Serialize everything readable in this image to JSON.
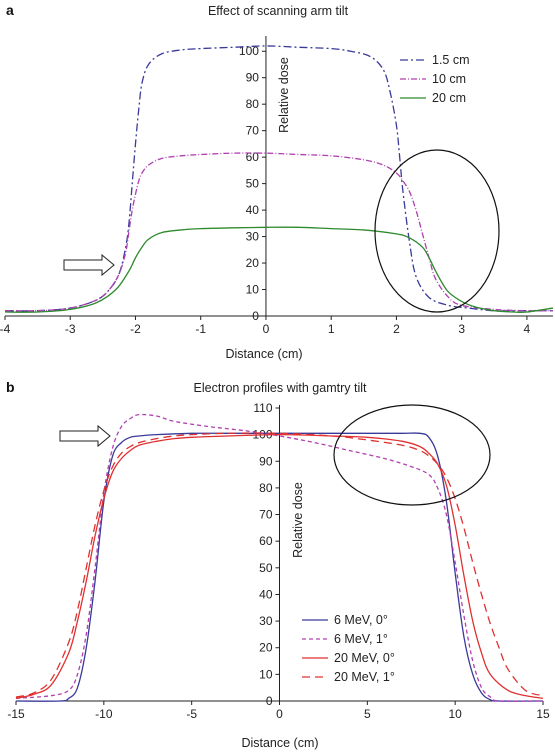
{
  "chart_data": [
    {
      "panel": "a",
      "type": "line",
      "title": "Effect of scanning arm tilt",
      "xlabel": "Distance (cm)",
      "ylabel": "Relative dose",
      "xlim": [
        -4,
        4.4
      ],
      "ylim": [
        0,
        105
      ],
      "xticks": [
        -4,
        -3,
        -2,
        -1,
        0,
        1,
        2,
        3,
        4
      ],
      "yticks": [
        0,
        10,
        20,
        30,
        40,
        50,
        60,
        70,
        80,
        90,
        100
      ],
      "legend_position": "top-right",
      "series": [
        {
          "name": "1.5 cm",
          "color": "#3a3a9a",
          "dash": "8,3,2,3",
          "x": [
            -4.0,
            -3.5,
            -3.0,
            -2.6,
            -2.4,
            -2.25,
            -2.15,
            -2.1,
            -2.05,
            -2.0,
            -1.95,
            -1.9,
            -1.8,
            -1.6,
            -1.3,
            -1.0,
            -0.5,
            0.0,
            0.5,
            1.0,
            1.3,
            1.6,
            1.8,
            1.9,
            2.0,
            2.05,
            2.1,
            2.2,
            2.3,
            2.5,
            2.8,
            3.1,
            3.5,
            4.0,
            4.4
          ],
          "y": [
            2,
            2,
            3,
            6,
            10,
            16,
            26,
            35,
            50,
            65,
            78,
            88,
            95,
            99,
            100.5,
            101,
            101.5,
            102,
            101.5,
            101,
            100,
            98,
            93,
            85,
            72,
            60,
            47,
            28,
            15,
            7,
            4,
            3,
            2,
            2,
            2
          ]
        },
        {
          "name": "10 cm",
          "color": "#b040b0",
          "dash": "6,2,1,2",
          "x": [
            -4.0,
            -3.5,
            -3.0,
            -2.6,
            -2.4,
            -2.25,
            -2.15,
            -2.1,
            -2.05,
            -2.0,
            -1.95,
            -1.9,
            -1.8,
            -1.6,
            -1.3,
            -1.0,
            -0.5,
            0.0,
            0.5,
            1.0,
            1.5,
            1.8,
            2.0,
            2.1,
            2.2,
            2.3,
            2.4,
            2.5,
            2.6,
            2.8,
            3.0,
            3.5,
            4.0,
            4.4
          ],
          "y": [
            2,
            2,
            3,
            6,
            10,
            16,
            24,
            32,
            40,
            46,
            51,
            54,
            57,
            59.5,
            60.5,
            61,
            61.5,
            61.5,
            61,
            60.5,
            59,
            57,
            54,
            51,
            47,
            40,
            31,
            22,
            14,
            7,
            4,
            2.5,
            2,
            2
          ]
        },
        {
          "name": "20 cm",
          "color": "#2d8a2d",
          "dash": "",
          "x": [
            -4.0,
            -3.5,
            -3.0,
            -2.6,
            -2.3,
            -2.1,
            -2.0,
            -1.9,
            -1.8,
            -1.6,
            -1.3,
            -1.0,
            -0.5,
            0.0,
            0.5,
            1.0,
            1.5,
            2.0,
            2.2,
            2.4,
            2.5,
            2.6,
            2.7,
            2.8,
            3.0,
            3.2,
            3.5,
            3.8,
            4.0,
            4.4
          ],
          "y": [
            1.5,
            1.5,
            2.5,
            5,
            10,
            17,
            22,
            26,
            29,
            31.5,
            32.5,
            33,
            33.3,
            33.5,
            33.5,
            33,
            32.5,
            31,
            29.5,
            26,
            22,
            17,
            12.5,
            9,
            5.5,
            3.5,
            2,
            1.5,
            1.5,
            3
          ]
        }
      ],
      "annotations": [
        "arrow",
        "ellipse"
      ]
    },
    {
      "panel": "b",
      "type": "line",
      "title": "Electron profiles with gamtry tilt",
      "xlabel": "Distance (cm)",
      "ylabel": "Relative dose",
      "xlim": [
        -15,
        15
      ],
      "ylim": [
        0,
        110
      ],
      "xticks": [
        -15,
        -10,
        -5,
        0,
        5,
        10,
        15
      ],
      "yticks": [
        0,
        10,
        20,
        30,
        40,
        50,
        60,
        70,
        80,
        90,
        100,
        110
      ],
      "legend_position": "bottom-right",
      "series": [
        {
          "name": "6 MeV, 0°",
          "color": "#3a3a9a",
          "dash": "",
          "x": [
            -15,
            -12.5,
            -12.0,
            -11.5,
            -11.0,
            -10.5,
            -10.0,
            -9.5,
            -9.0,
            -8.5,
            -8.0,
            -7.0,
            -5.0,
            -3.0,
            0.0,
            3.0,
            5.0,
            7.0,
            8.0,
            8.5,
            9.0,
            9.5,
            10.0,
            10.5,
            11.0,
            11.5,
            12.0,
            12.5,
            15
          ],
          "y": [
            0,
            0,
            1,
            5,
            20,
            45,
            75,
            92,
            97,
            99,
            99.5,
            100,
            100.5,
            100.5,
            100.5,
            100.5,
            100.5,
            100.5,
            100.5,
            99,
            92,
            75,
            48,
            24,
            10,
            3,
            0.5,
            0,
            0
          ]
        },
        {
          "name": "6 MeV, 1°",
          "color": "#b040b0",
          "dash": "4,3",
          "x": [
            -15,
            -13.0,
            -12.0,
            -11.5,
            -11.0,
            -10.5,
            -10.0,
            -9.5,
            -9.0,
            -8.5,
            -8.0,
            -7.0,
            -6.0,
            -4.0,
            -2.0,
            0.0,
            2.0,
            4.0,
            6.0,
            7.5,
            8.5,
            9.0,
            9.5,
            10.0,
            10.5,
            11.0,
            11.5,
            12.0,
            12.5,
            15
          ],
          "y": [
            1,
            2,
            4,
            10,
            25,
            50,
            78,
            95,
            103,
            106,
            107.5,
            107,
            105,
            103,
            101.5,
            99.5,
            97,
            94,
            91,
            88,
            85,
            80,
            70,
            52,
            32,
            15,
            5,
            1.5,
            0,
            0
          ]
        },
        {
          "name": "20 MeV, 0°",
          "color": "#e03030",
          "dash": "",
          "x": [
            -15,
            -14,
            -13,
            -12,
            -11.5,
            -11,
            -10.5,
            -10,
            -9.5,
            -9,
            -8.5,
            -8,
            -7,
            -6,
            -5,
            -3,
            0,
            3,
            5,
            7,
            8,
            8.5,
            9,
            9.5,
            10,
            10.5,
            11,
            11.5,
            12,
            13,
            14,
            15
          ],
          "y": [
            1,
            2.5,
            6,
            18,
            30,
            45,
            62,
            76,
            86,
            91,
            94,
            96,
            97.5,
            98.5,
            99,
            99.5,
            100,
            99.5,
            99,
            97.5,
            95.5,
            93,
            89,
            81,
            66,
            47,
            30,
            18,
            10,
            4,
            2,
            1
          ]
        },
        {
          "name": "20 MeV, 1°",
          "color": "#e03030",
          "dash": "8,5",
          "x": [
            -15,
            -14,
            -13,
            -12,
            -11.5,
            -11,
            -10.5,
            -10,
            -9.5,
            -9,
            -8.5,
            -8,
            -7,
            -6,
            -5,
            -3,
            0,
            3,
            5,
            7,
            8,
            8.5,
            9,
            9.5,
            10,
            10.5,
            11,
            11.5,
            12,
            12.5,
            13,
            14,
            15
          ],
          "y": [
            1.5,
            3,
            8,
            22,
            34,
            50,
            66,
            79,
            88,
            93,
            95.5,
            97,
            98.5,
            99.5,
            100,
            100.5,
            100.5,
            99.5,
            98,
            96,
            94,
            92,
            89,
            84,
            76,
            65,
            52,
            40,
            29,
            20,
            12,
            4,
            2
          ]
        }
      ],
      "annotations": [
        "arrow",
        "ellipse"
      ]
    }
  ]
}
